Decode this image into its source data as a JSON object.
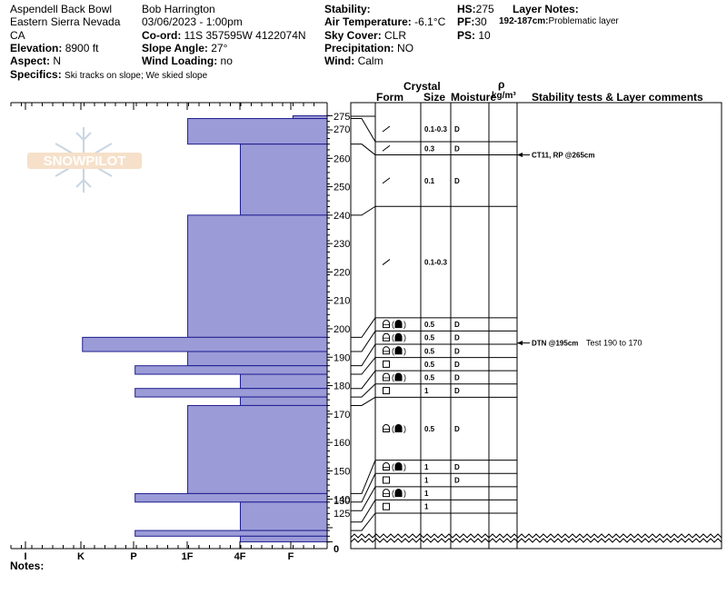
{
  "header": {
    "location": "Aspendell Back Bowl",
    "range": "Eastern Sierra Nevada",
    "state": "CA",
    "elevation_label": "Elevation:",
    "elevation_value": "8900 ft",
    "aspect_label": "Aspect:",
    "aspect_value": "N",
    "specifics_label": "Specifics:",
    "specifics_value": "Ski tracks on slope; We skied slope",
    "observer": "Bob Harrington",
    "datetime": "03/06/2023 - 1:00pm",
    "coord_label": "Co-ord:",
    "coord_value": "11S 357595W 4122074N",
    "slope_label": "Slope Angle:",
    "slope_value": "27°",
    "wind_loading_label": "Wind Loading:",
    "wind_loading_value": "no",
    "stability_label": "Stability:",
    "air_temp_label": "Air Temperature:",
    "air_temp_value": "-6.1°C",
    "sky_label": "Sky Cover:",
    "sky_value": "CLR",
    "precip_label": "Precipitation:",
    "precip_value": "NO",
    "wind_label": "Wind:",
    "wind_value": "Calm",
    "hs_label": "HS:",
    "hs_value": "275",
    "pf_label": "PF:",
    "pf_value": "30",
    "ps_label": "PS:",
    "ps_value": "10",
    "layer_notes_label": "Layer Notes:",
    "layer_note_range": "192-187cm:",
    "layer_note_text": "Problematic layer"
  },
  "columns": {
    "crystal": "Crystal",
    "form": "Form",
    "size": "Size",
    "moisture": "Moisture",
    "rho": "ρ",
    "density_unit": "kg/m³",
    "stability": "Stability tests & Layer comments"
  },
  "watermark": "SNOWPILOT",
  "notes_label": "Notes:",
  "chart_data": {
    "type": "snow-profile",
    "hardness_axis": [
      "I",
      "K",
      "P",
      "1F",
      "4F",
      "F"
    ],
    "height_ticks": [
      275,
      270,
      260,
      250,
      240,
      230,
      220,
      210,
      200,
      190,
      180,
      170,
      160,
      150,
      140,
      130,
      125
    ],
    "zero_label": "0",
    "height_range": [
      125,
      277
    ],
    "hardness_profile": [
      {
        "top": 275,
        "bottom": 274,
        "hardness": 0.65
      },
      {
        "top": 274,
        "bottom": 265,
        "hardness": 2.65
      },
      {
        "top": 265,
        "bottom": 240,
        "hardness": 1.65
      },
      {
        "top": 240,
        "bottom": 197,
        "hardness": 2.65
      },
      {
        "top": 197,
        "bottom": 192,
        "hardness": 4.65
      },
      {
        "top": 192,
        "bottom": 187,
        "hardness": 2.65
      },
      {
        "top": 187,
        "bottom": 184,
        "hardness": 3.65
      },
      {
        "top": 184,
        "bottom": 179,
        "hardness": 1.65
      },
      {
        "top": 179,
        "bottom": 176,
        "hardness": 3.65
      },
      {
        "top": 176,
        "bottom": 173,
        "hardness": 1.65
      },
      {
        "top": 173,
        "bottom": 142,
        "hardness": 2.65
      },
      {
        "top": 142,
        "bottom": 139,
        "hardness": 3.65
      },
      {
        "top": 139,
        "bottom": 129,
        "hardness": 1.65
      },
      {
        "top": 129,
        "bottom": 127,
        "hardness": 3.65
      },
      {
        "top": 127,
        "bottom": 125,
        "hardness": 1.65
      }
    ],
    "layer_boundaries": [
      274,
      265,
      240,
      197,
      192,
      187,
      184,
      179,
      176,
      173,
      142,
      139,
      136,
      132,
      129
    ],
    "layers": [
      {
        "top": 275,
        "bottom": 265,
        "form": "decomposing",
        "size": "0.1-0.3",
        "moisture": "D"
      },
      {
        "top": 265,
        "bottom": 262,
        "form": "decomposing",
        "size": "0.3",
        "moisture": "D"
      },
      {
        "top": 262,
        "bottom": 240,
        "form": "decomposing",
        "size": "0.1",
        "moisture": "D"
      },
      {
        "top": 240,
        "bottom": 197,
        "form": "decomposing",
        "size": "0.1-0.3",
        "moisture": ""
      },
      {
        "top": 197,
        "bottom": 192,
        "form": "rounding-facet",
        "size": "0.5",
        "moisture": "D"
      },
      {
        "top": 192,
        "bottom": 187,
        "form": "rounding-facet",
        "size": "0.5",
        "moisture": "D"
      },
      {
        "top": 187,
        "bottom": 184,
        "form": "rounding-facet",
        "size": "0.5",
        "moisture": "D"
      },
      {
        "top": 184,
        "bottom": 179,
        "form": "facet",
        "size": "0.5",
        "moisture": "D"
      },
      {
        "top": 179,
        "bottom": 176,
        "form": "rounding-facet",
        "size": "0.5",
        "moisture": "D"
      },
      {
        "top": 176,
        "bottom": 173,
        "form": "facet",
        "size": "1",
        "moisture": "D"
      },
      {
        "top": 173,
        "bottom": 142,
        "form": "rounding-facet",
        "size": "0.5",
        "moisture": "D"
      },
      {
        "top": 142,
        "bottom": 139,
        "form": "rounding-facet",
        "size": "1",
        "moisture": "D"
      },
      {
        "top": 139,
        "bottom": 136,
        "form": "facet",
        "size": "1",
        "moisture": "D"
      },
      {
        "top": 136,
        "bottom": 132,
        "form": "rounding-facet",
        "size": "1",
        "moisture": ""
      },
      {
        "top": 132,
        "bottom": 129,
        "form": "facet",
        "size": "1",
        "moisture": ""
      }
    ],
    "stability_tests": [
      {
        "height": 265,
        "label": "CT11, RP @265cm",
        "comment": ""
      },
      {
        "height": 195,
        "label": "DTN @195cm",
        "comment": "Test 190 to 170"
      }
    ],
    "colors": {
      "hardness_fill": "#9b9bd8",
      "hardness_stroke": "#1f1f8f"
    }
  }
}
